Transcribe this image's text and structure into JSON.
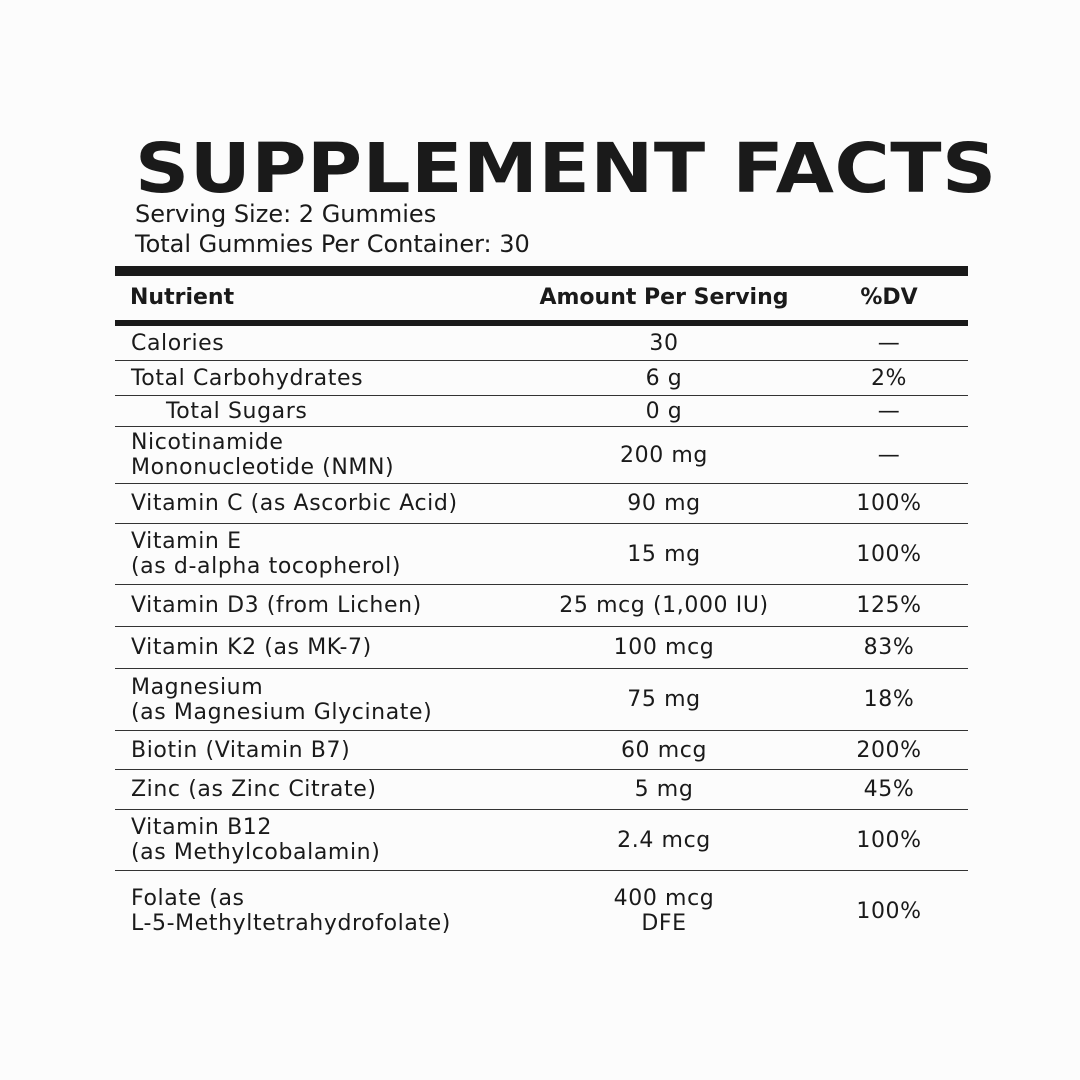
{
  "title": "SUPPLEMENT FACTS",
  "serving_size": "Serving Size: 2 Gummies",
  "per_container": "Total Gummies Per Container:  30",
  "headers": {
    "nutrient": "Nutrient",
    "amount": "Amount Per Serving",
    "dv": "%DV"
  },
  "rows": [
    {
      "name": "Calories",
      "amount": "30",
      "dv": "—"
    },
    {
      "name": "Total Carbohydrates",
      "amount": "6 g",
      "dv": "2%"
    },
    {
      "name": "Total Sugars",
      "amount": "0 g",
      "dv": "—"
    },
    {
      "name": "Nicotinamide\nMononucleotide (NMN)",
      "amount": "200 mg",
      "dv": "—"
    },
    {
      "name": "Vitamin C (as Ascorbic Acid)",
      "amount": "90 mg",
      "dv": "100%"
    },
    {
      "name": "Vitamin E\n(as d-alpha tocopherol)",
      "amount": "15 mg",
      "dv": "100%"
    },
    {
      "name": "Vitamin D3 (from Lichen)",
      "amount": "25 mcg (1,000 IU)",
      "dv": "125%"
    },
    {
      "name": "Vitamin K2 (as MK-7)",
      "amount": "100 mcg",
      "dv": "83%"
    },
    {
      "name": "Magnesium\n(as Magnesium Glycinate)",
      "amount": "75 mg",
      "dv": "18%"
    },
    {
      "name": "Biotin (Vitamin B7)",
      "amount": "60 mcg",
      "dv": "200%"
    },
    {
      "name": "Zinc (as Zinc Citrate)",
      "amount": "5 mg",
      "dv": "45%"
    },
    {
      "name": "Vitamin B12\n(as Methylcobalamin)",
      "amount": "2.4 mcg",
      "dv": "100%"
    },
    {
      "name": "Folate (as\nL-5-Methyltetrahydrofolate)",
      "amount": "400 mcg\nDFE",
      "dv": "100%"
    }
  ]
}
